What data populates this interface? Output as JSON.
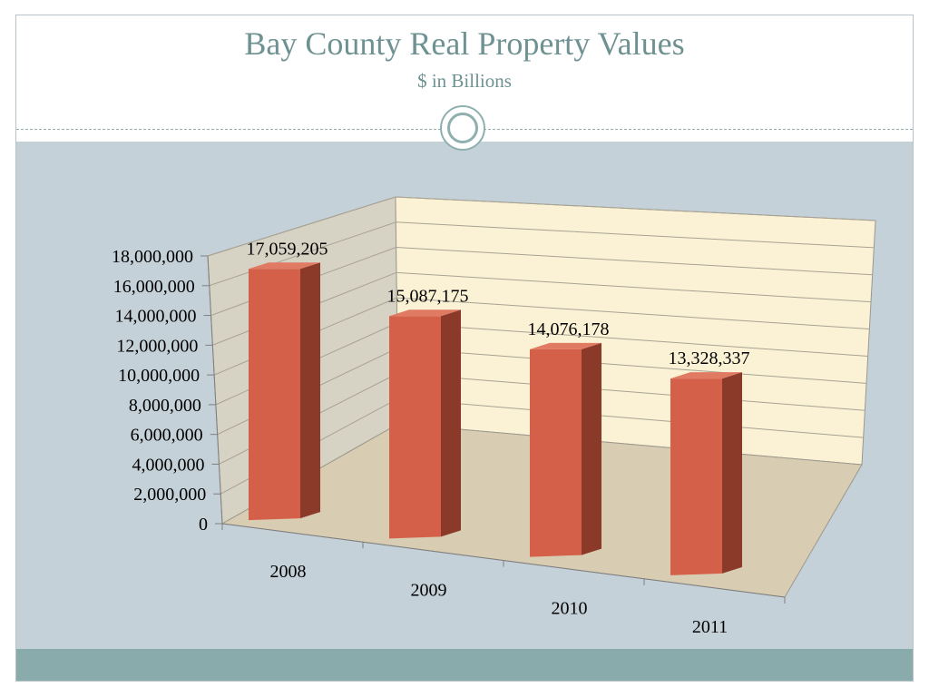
{
  "slide": {
    "title": "Bay County Real Property Values",
    "subtitle": "$ in Billions"
  },
  "colors": {
    "title": "#6e9291",
    "content_band": "#c5d1d8",
    "footer_band": "#89abab",
    "bar_front": "#d4604a",
    "bar_side": "#8b3a2a",
    "bar_top": "#e07a62",
    "back_wall": "#fbf2d6",
    "side_wall": "#d6d2c4",
    "floor": "#d8cdb3"
  },
  "chart_data": {
    "type": "bar",
    "style": "3d-column",
    "title": "Bay County Real Property Values",
    "subtitle": "$ in Billions",
    "categories": [
      "2008",
      "2009",
      "2010",
      "2011"
    ],
    "values": [
      17059205,
      15087175,
      14076178,
      13328337
    ],
    "value_labels": [
      "17,059,205",
      "15,087,175",
      "14,076,178",
      "13,328,337"
    ],
    "y_ticks": [
      "0",
      "2,000,000",
      "4,000,000",
      "6,000,000",
      "8,000,000",
      "10,000,000",
      "12,000,000",
      "14,000,000",
      "16,000,000",
      "18,000,000"
    ],
    "ylim": [
      0,
      18000000
    ],
    "grid": true,
    "legend": "none"
  }
}
